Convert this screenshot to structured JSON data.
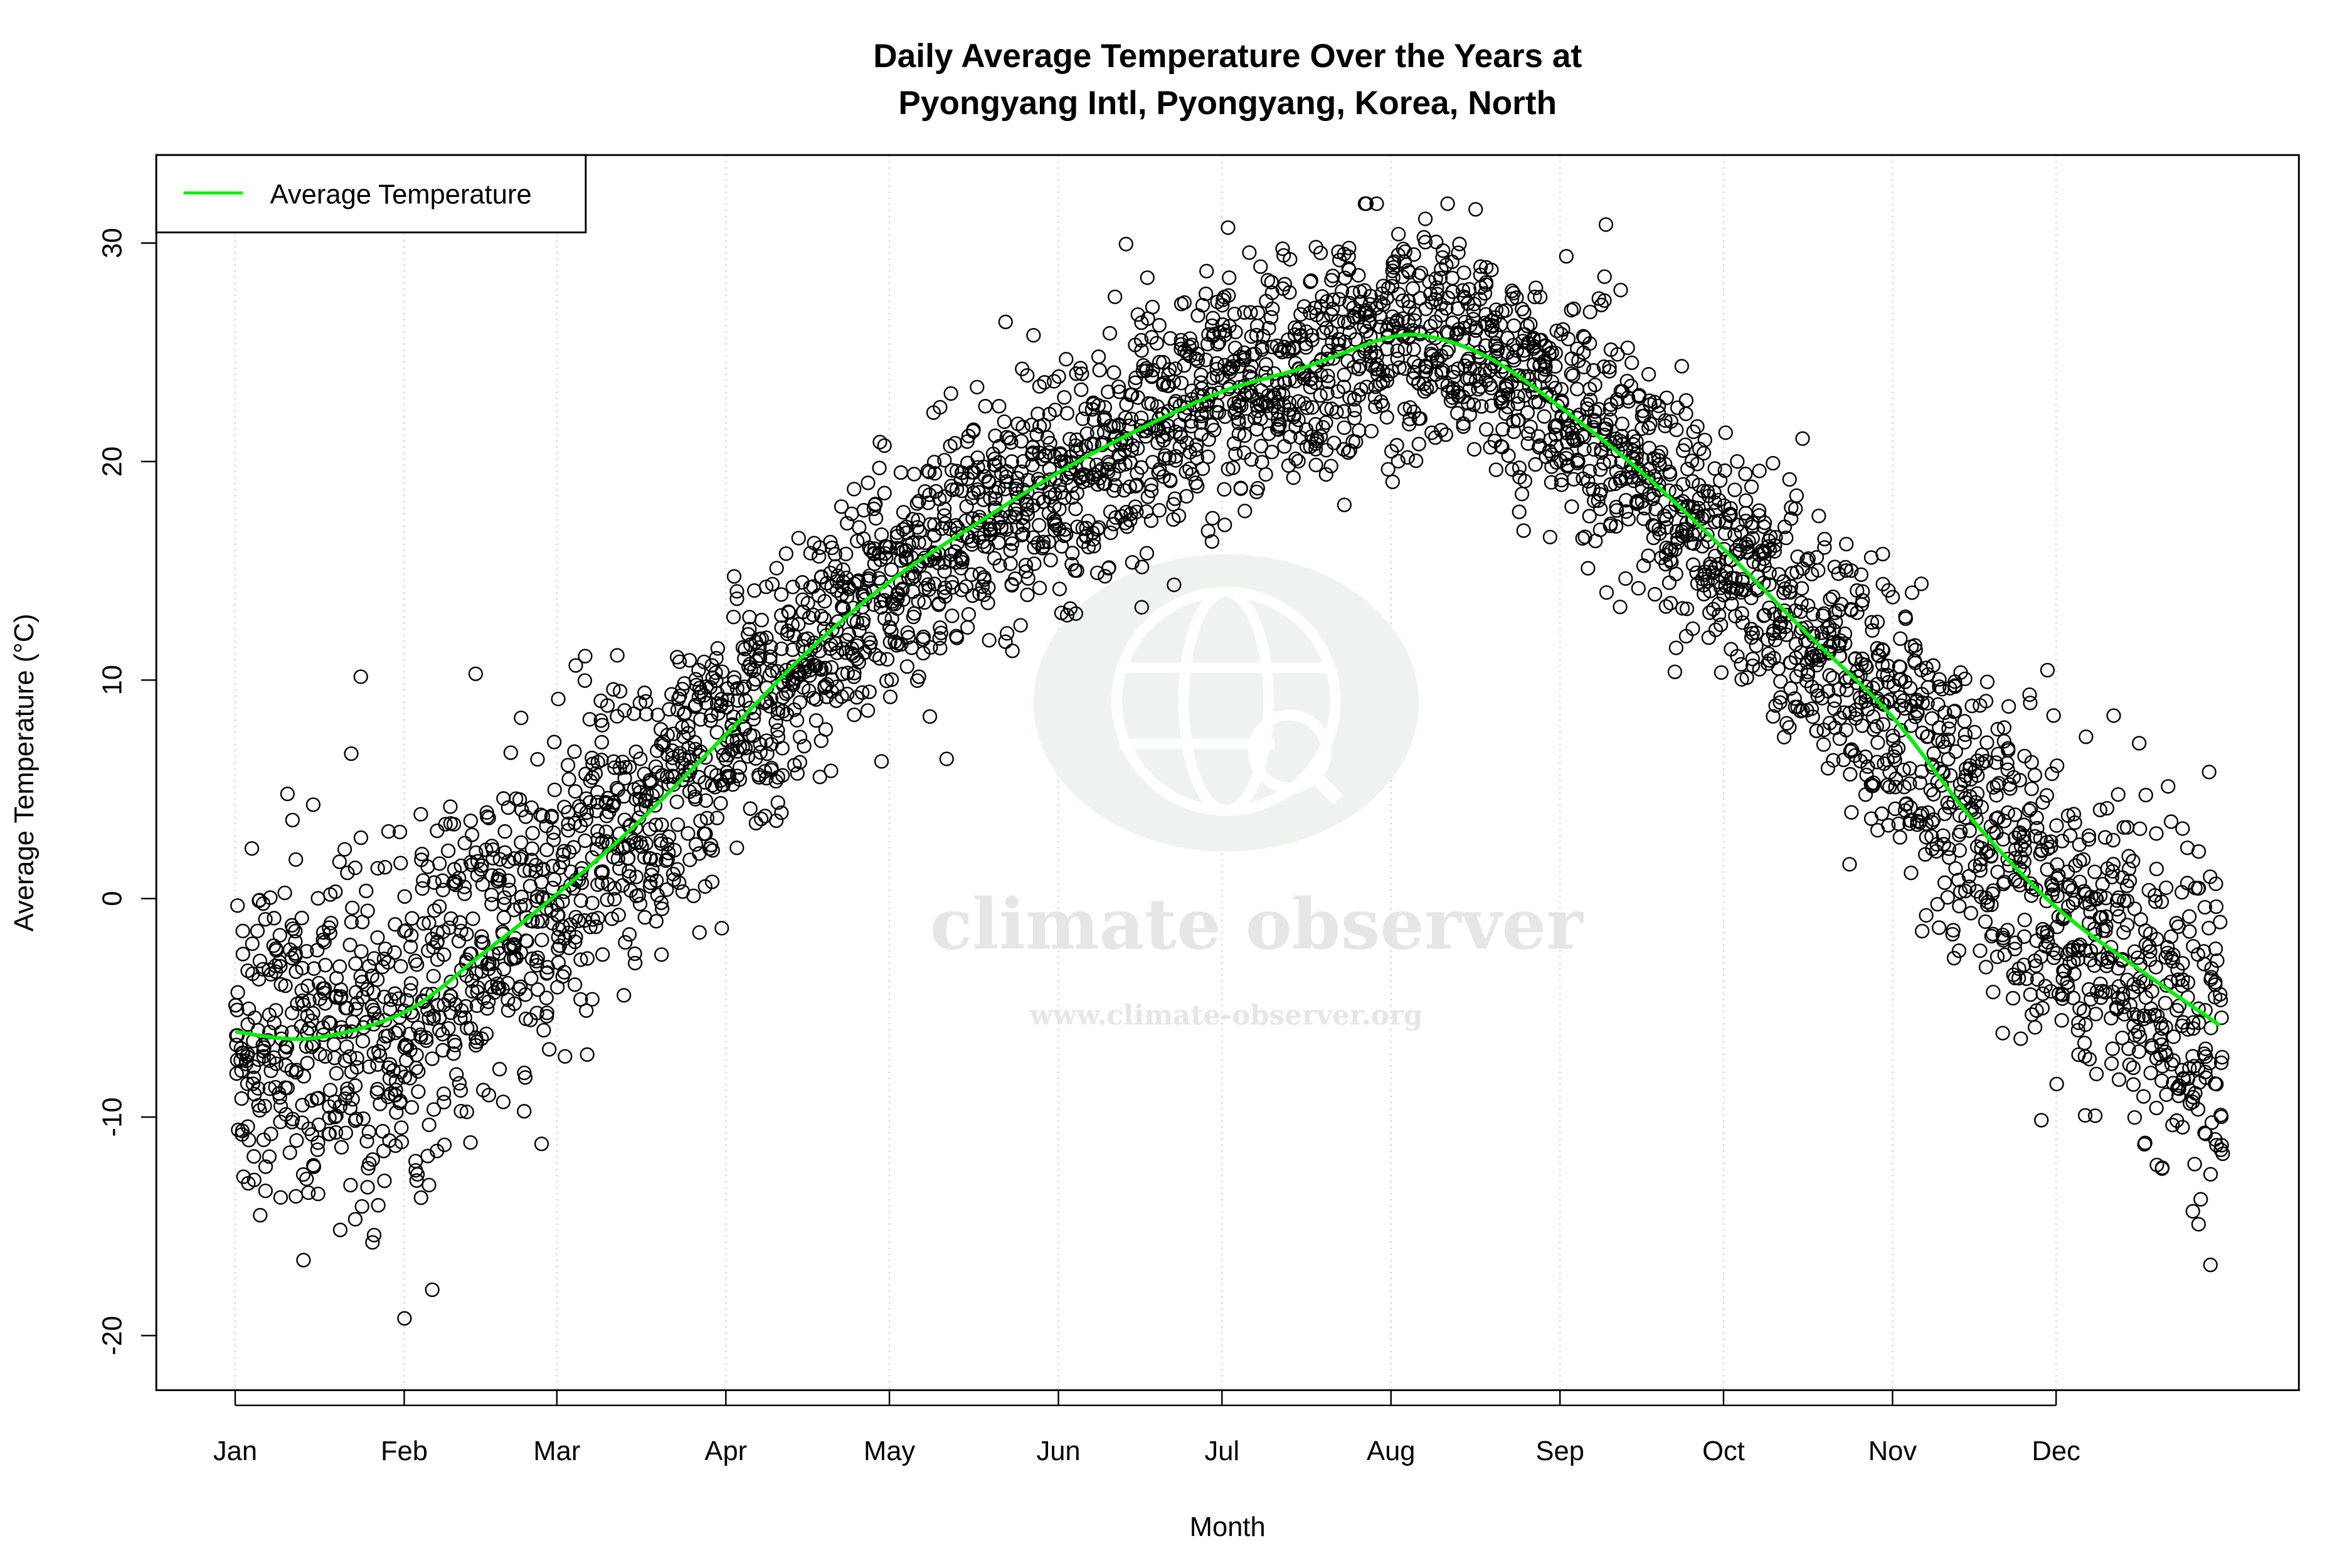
{
  "chart_data": {
    "type": "scatter",
    "title_line1": "Daily Average Temperature Over the Years at",
    "title_line2": "Pyongyang Intl, Pyongyang, Korea, North",
    "xlabel": "Month",
    "ylabel": "Average Temperature (°C)",
    "x_tick_labels": [
      "Jan",
      "Feb",
      "Mar",
      "Apr",
      "May",
      "Jun",
      "Jul",
      "Aug",
      "Sep",
      "Oct",
      "Nov",
      "Dec"
    ],
    "x_tick_days": [
      1,
      32,
      60,
      91,
      121,
      152,
      182,
      213,
      244,
      274,
      305,
      335
    ],
    "xlim_days": [
      1,
      365
    ],
    "y_ticks": [
      -20,
      -10,
      0,
      10,
      20,
      30
    ],
    "ylim": [
      -22.5,
      33
    ],
    "grid": "vertical dotted at month starts",
    "legend": {
      "placement": "top-left",
      "entries": [
        {
          "label": "Average Temperature",
          "color": "#00ee00"
        }
      ]
    },
    "colors": {
      "points": "#000000",
      "average_line": "#00ee00"
    },
    "series": [
      {
        "name": "Average Temperature",
        "kind": "line",
        "x_day": [
          1,
          15,
          32,
          46,
          60,
          75,
          91,
          106,
          121,
          136,
          152,
          167,
          182,
          197,
          213,
          222,
          232,
          244,
          259,
          274,
          289,
          305,
          320,
          335,
          350,
          365
        ],
        "y": [
          -6.1,
          -6.4,
          -5.2,
          -2.6,
          0.2,
          3.5,
          7.5,
          11.3,
          14.5,
          17.0,
          19.5,
          21.5,
          23.2,
          24.3,
          25.7,
          25.6,
          24.6,
          22.5,
          19.5,
          16.0,
          12.2,
          8.3,
          3.5,
          -0.4,
          -3.2,
          -5.8
        ]
      },
      {
        "kind": "points",
        "description_range_c": [
          -20.5,
          31.8
        ]
      }
    ]
  },
  "watermark": {
    "brand": "climate observer",
    "url": "www.climate-observer.org"
  }
}
